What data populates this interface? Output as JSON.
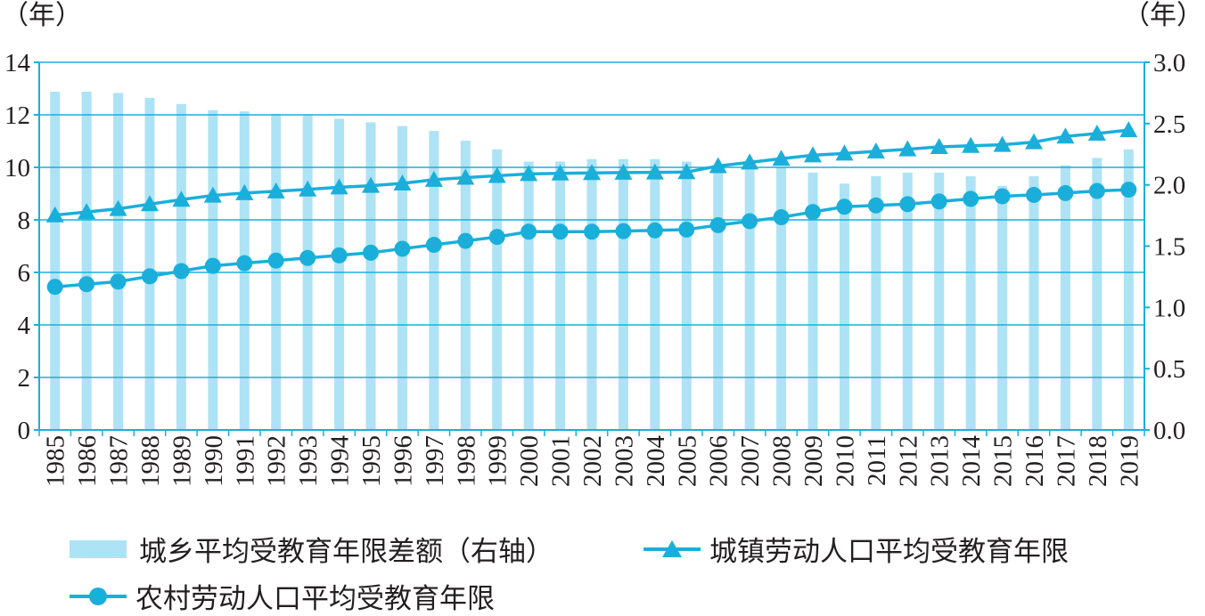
{
  "colors": {
    "bar": "#ade3f5",
    "line": "#1aafdb",
    "axis": "#1aafdb",
    "grid": "#1aafdb",
    "text": "#231f20"
  },
  "chart_data": {
    "type": "bar+line",
    "left_axis_unit": "（年）",
    "right_axis_unit": "（年）",
    "categories": [
      "1985",
      "1986",
      "1987",
      "1988",
      "1989",
      "1990",
      "1991",
      "1992",
      "1993",
      "1994",
      "1995",
      "1996",
      "1997",
      "1998",
      "1999",
      "2000",
      "2001",
      "2002",
      "2003",
      "2004",
      "2005",
      "2006",
      "2007",
      "2008",
      "2009",
      "2010",
      "2011",
      "2012",
      "2013",
      "2014",
      "2015",
      "2016",
      "2017",
      "2018",
      "2019"
    ],
    "left_axis": {
      "ylim": [
        0,
        14
      ],
      "ticks": [
        "0",
        "2",
        "4",
        "6",
        "8",
        "10",
        "12",
        "14"
      ]
    },
    "right_axis": {
      "ylim": [
        0,
        3.0
      ],
      "ticks": [
        "0.0",
        "0.5",
        "1.0",
        "1.5",
        "2.0",
        "2.5",
        "3.0"
      ]
    },
    "grid": true,
    "legend_position": "bottom",
    "series": [
      {
        "name": "城乡平均受教育年限差额（右轴）",
        "type": "bar",
        "axis": "right",
        "values": [
          2.76,
          2.76,
          2.75,
          2.71,
          2.66,
          2.61,
          2.6,
          2.58,
          2.57,
          2.54,
          2.51,
          2.48,
          2.44,
          2.36,
          2.29,
          2.19,
          2.19,
          2.21,
          2.21,
          2.21,
          2.19,
          2.15,
          2.17,
          2.14,
          2.1,
          2.01,
          2.07,
          2.1,
          2.1,
          2.07,
          1.99,
          2.07,
          2.16,
          2.22,
          2.29
        ]
      },
      {
        "name": "城镇劳动人口平均受教育年限",
        "type": "line",
        "marker": "triangle",
        "axis": "left",
        "values": [
          8.18,
          8.3,
          8.42,
          8.6,
          8.77,
          8.93,
          9.02,
          9.09,
          9.16,
          9.24,
          9.3,
          9.39,
          9.53,
          9.61,
          9.68,
          9.75,
          9.77,
          9.79,
          9.8,
          9.81,
          9.82,
          10.05,
          10.19,
          10.33,
          10.46,
          10.53,
          10.61,
          10.69,
          10.78,
          10.82,
          10.86,
          10.96,
          11.18,
          11.29,
          11.42
        ]
      },
      {
        "name": "农村劳动人口平均受教育年限",
        "type": "line",
        "marker": "circle",
        "axis": "left",
        "values": [
          5.45,
          5.55,
          5.65,
          5.85,
          6.05,
          6.25,
          6.35,
          6.45,
          6.55,
          6.65,
          6.75,
          6.9,
          7.05,
          7.2,
          7.35,
          7.55,
          7.55,
          7.55,
          7.57,
          7.6,
          7.63,
          7.8,
          7.95,
          8.1,
          8.3,
          8.5,
          8.55,
          8.6,
          8.7,
          8.8,
          8.9,
          8.95,
          9.02,
          9.1,
          9.15
        ]
      }
    ]
  }
}
